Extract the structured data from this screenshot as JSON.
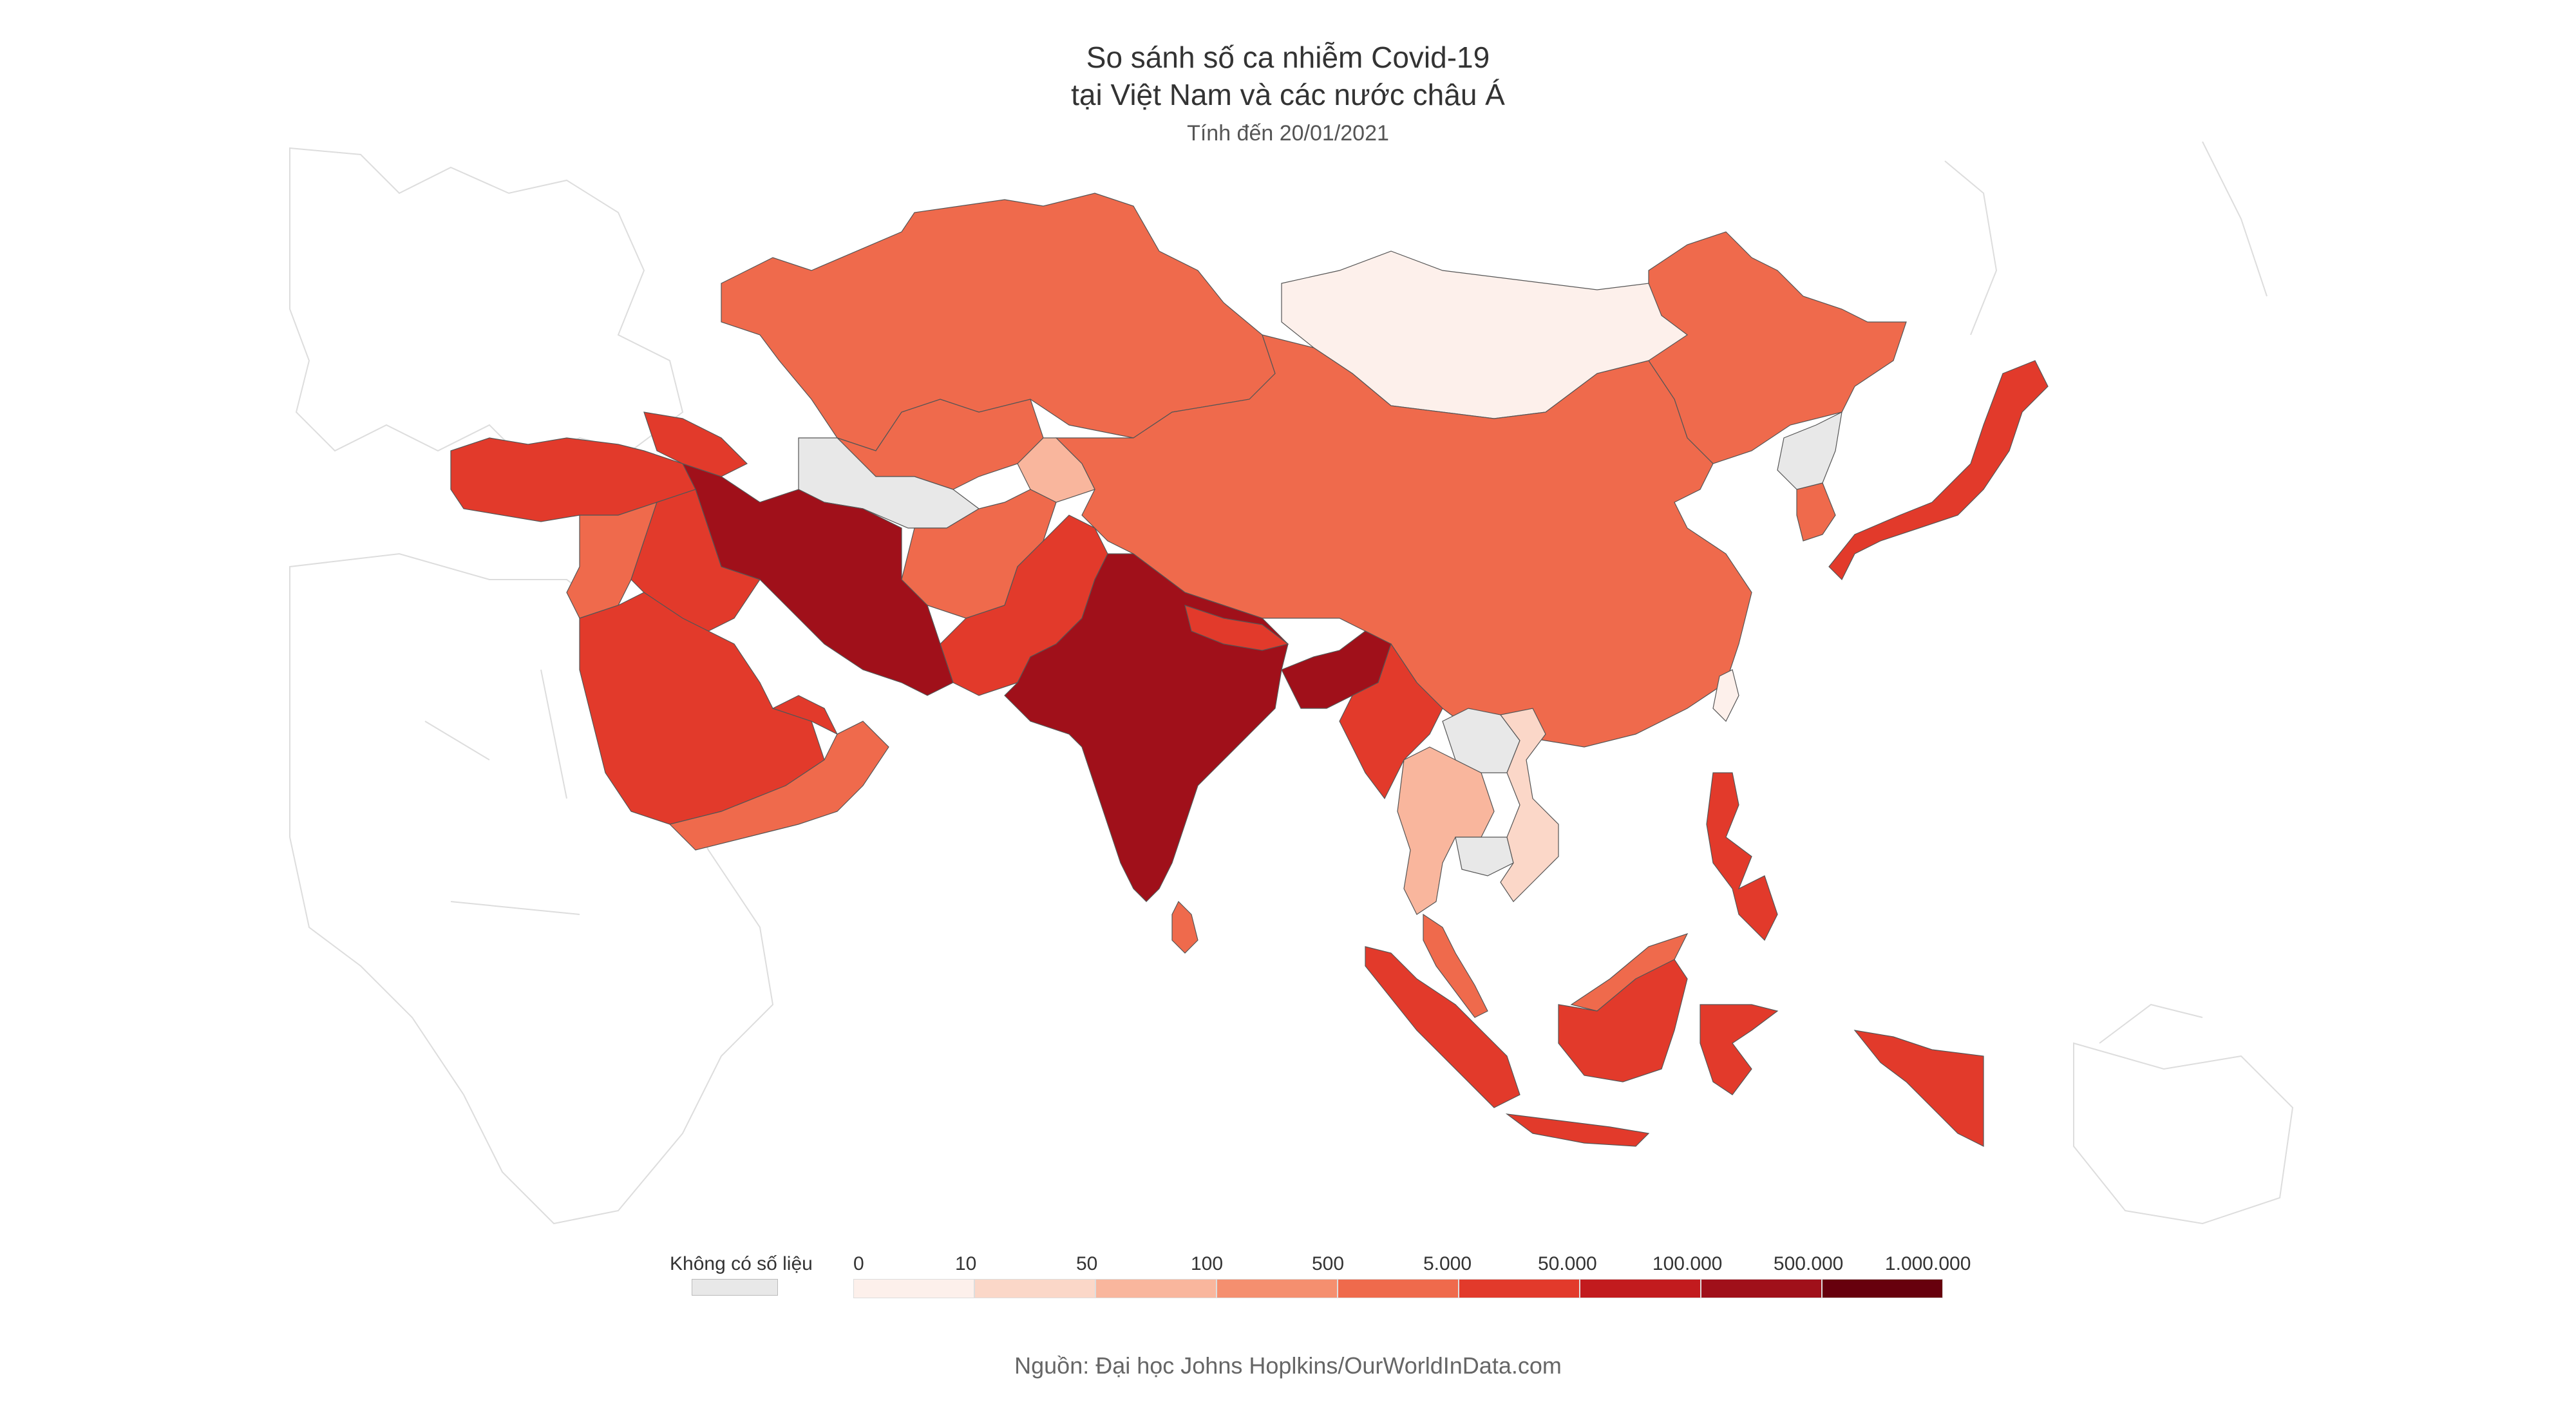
{
  "header": {
    "title_line1": "So sánh số ca nhiễm Covid-19",
    "title_line2": "tại Việt Nam và các nước châu Á",
    "subtitle": "Tính đến 20/01/2021"
  },
  "legend": {
    "nodata_label": "Không có số liệu",
    "ticks": [
      "0",
      "10",
      "50",
      "100",
      "500",
      "5.000",
      "50.000",
      "100.000",
      "500.000",
      "1.000.000"
    ],
    "colors": [
      "#fdf0eb",
      "#fbd7c8",
      "#f9b69d",
      "#f58f6f",
      "#ef6a4c",
      "#e23a2b",
      "#c21b1e",
      "#a0101a",
      "#67000d"
    ],
    "nodata_color": "#e8e8e8"
  },
  "source": "Nguồn: Đại học Johns Hoplkins/OurWorldInData.com",
  "map": {
    "regions": [
      {
        "name": "kazakhstan",
        "bin": 5
      },
      {
        "name": "china",
        "bin": 5
      },
      {
        "name": "mongolia",
        "bin": 1
      },
      {
        "name": "russia-far-east",
        "bin": 5
      },
      {
        "name": "uzbekistan",
        "bin": 5
      },
      {
        "name": "turkmenistan",
        "bin": 0
      },
      {
        "name": "kyrgyzstan-tajikistan",
        "bin": 3
      },
      {
        "name": "afghanistan",
        "bin": 5
      },
      {
        "name": "pakistan",
        "bin": 6
      },
      {
        "name": "india",
        "bin": 8
      },
      {
        "name": "nepal",
        "bin": 6
      },
      {
        "name": "bangladesh",
        "bin": 8
      },
      {
        "name": "myanmar",
        "bin": 6
      },
      {
        "name": "sri-lanka",
        "bin": 5
      },
      {
        "name": "iran",
        "bin": 8
      },
      {
        "name": "iraq",
        "bin": 6
      },
      {
        "name": "turkey",
        "bin": 6
      },
      {
        "name": "caucasus",
        "bin": 6
      },
      {
        "name": "syria-jordan",
        "bin": 5
      },
      {
        "name": "saudi-arabia",
        "bin": 6
      },
      {
        "name": "yemen-oman",
        "bin": 5
      },
      {
        "name": "uae-qatar",
        "bin": 6
      },
      {
        "name": "thailand",
        "bin": 3
      },
      {
        "name": "laos",
        "bin": 0
      },
      {
        "name": "cambodia",
        "bin": 0
      },
      {
        "name": "vietnam",
        "bin": 2
      },
      {
        "name": "malay-peninsula",
        "bin": 5
      },
      {
        "name": "sumatra",
        "bin": 6
      },
      {
        "name": "java",
        "bin": 6
      },
      {
        "name": "borneo-indonesia",
        "bin": 6
      },
      {
        "name": "sabah-sarawak",
        "bin": 5
      },
      {
        "name": "sulawesi",
        "bin": 6
      },
      {
        "name": "papua",
        "bin": 6
      },
      {
        "name": "philippines",
        "bin": 6
      },
      {
        "name": "japan",
        "bin": 6
      },
      {
        "name": "south-korea",
        "bin": 5
      },
      {
        "name": "north-korea",
        "bin": 0
      },
      {
        "name": "taiwan",
        "bin": 1
      }
    ]
  }
}
